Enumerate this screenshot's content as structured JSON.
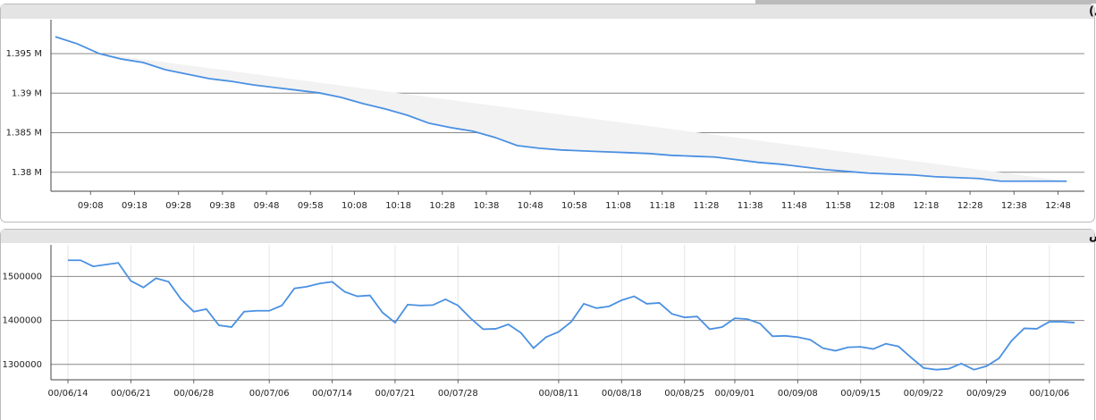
{
  "chart_data": [
    {
      "type": "line",
      "title": "شاخص کل (آخرین روز معاملاتی)",
      "x": [
        "09:00",
        "09:05",
        "09:10",
        "09:15",
        "09:20",
        "09:25",
        "09:30",
        "09:35",
        "09:40",
        "09:45",
        "09:50",
        "09:55",
        "10:00",
        "10:05",
        "10:10",
        "10:15",
        "10:20",
        "10:25",
        "10:30",
        "10:35",
        "10:40",
        "10:45",
        "10:50",
        "10:55",
        "11:00",
        "11:05",
        "11:10",
        "11:15",
        "11:20",
        "11:25",
        "11:30",
        "11:35",
        "11:40",
        "11:45",
        "11:50",
        "11:55",
        "12:00",
        "12:05",
        "12:10",
        "12:15",
        "12:20",
        "12:25",
        "12:30",
        "12:35",
        "12:40",
        "12:45",
        "12:50"
      ],
      "series": [
        {
          "color": "#4a90e2",
          "values": [
            1397140,
            1396240,
            1395000,
            1394320,
            1393870,
            1392970,
            1392410,
            1391840,
            1391500,
            1391050,
            1390710,
            1390380,
            1390040,
            1389470,
            1388680,
            1388010,
            1387220,
            1386200,
            1385640,
            1385190,
            1384400,
            1383380,
            1383040,
            1382820,
            1382700,
            1382590,
            1382480,
            1382370,
            1382140,
            1382030,
            1381920,
            1381580,
            1381240,
            1381010,
            1380680,
            1380340,
            1380110,
            1379890,
            1379770,
            1379660,
            1379440,
            1379320,
            1379210,
            1378870,
            1378870,
            1378870,
            1378870
          ]
        }
      ],
      "xlim": [
        "08:59",
        "12:54"
      ],
      "xticks": [
        "09:08",
        "09:18",
        "09:28",
        "09:38",
        "09:48",
        "09:58",
        "10:08",
        "10:18",
        "10:28",
        "10:38",
        "10:48",
        "10:58",
        "11:08",
        "11:18",
        "11:28",
        "11:38",
        "11:48",
        "11:58",
        "12:08",
        "12:18",
        "12:28",
        "12:38",
        "12:48"
      ],
      "ylim": [
        1377600,
        1399300
      ],
      "yticks": [
        {
          "value": 1380000,
          "label": "1.38 M"
        },
        {
          "value": 1385000,
          "label": "1.385 M"
        },
        {
          "value": 1390000,
          "label": "1.39 M"
        },
        {
          "value": 1395000,
          "label": "1.395 M"
        }
      ],
      "grid": true
    },
    {
      "type": "line",
      "title": "نمودار شاخص",
      "categories": [
        "00/06/14",
        null,
        null,
        null,
        null,
        "00/06/21",
        null,
        null,
        null,
        null,
        "00/06/28",
        null,
        null,
        null,
        null,
        null,
        "00/07/06",
        null,
        null,
        null,
        null,
        "00/07/14",
        null,
        null,
        null,
        null,
        "00/07/21",
        null,
        null,
        null,
        null,
        "00/07/28",
        null,
        null,
        null,
        null,
        null,
        null,
        null,
        "00/08/11",
        null,
        null,
        null,
        null,
        "00/08/18",
        null,
        null,
        null,
        null,
        "00/08/25",
        null,
        null,
        null,
        "00/09/01",
        null,
        null,
        null,
        null,
        "00/09/08",
        null,
        null,
        null,
        null,
        "00/09/15",
        null,
        null,
        null,
        null,
        "00/09/22",
        null,
        null,
        null,
        null,
        "00/09/29",
        null,
        null,
        null,
        null,
        "00/10/06",
        null,
        null
      ],
      "series": [
        {
          "color": "#4a90e2",
          "values": [
            1537000,
            1537000,
            1523000,
            1527000,
            1531000,
            1490000,
            1475000,
            1496000,
            1488000,
            1448000,
            1420000,
            1426000,
            1389000,
            1385000,
            1420000,
            1422000,
            1422000,
            1434000,
            1473000,
            1477000,
            1484000,
            1488000,
            1465000,
            1455000,
            1457000,
            1418000,
            1395000,
            1436000,
            1434000,
            1435000,
            1448000,
            1434000,
            1405000,
            1380000,
            1381000,
            1391000,
            1372000,
            1337000,
            1362000,
            1374000,
            1397000,
            1438000,
            1428000,
            1432000,
            1446000,
            1455000,
            1438000,
            1440000,
            1415000,
            1407000,
            1409000,
            1380000,
            1385000,
            1405000,
            1403000,
            1393000,
            1364000,
            1365000,
            1362000,
            1356000,
            1337000,
            1331000,
            1339000,
            1340000,
            1335000,
            1347000,
            1341000,
            1316000,
            1292000,
            1288000,
            1290000,
            1302000,
            1288000,
            1296000,
            1314000,
            1354000,
            1382000,
            1381000,
            1397000,
            1397000,
            1395000
          ]
        }
      ],
      "ylim": [
        1265000,
        1572000
      ],
      "yticks": [
        1300000,
        1400000,
        1500000
      ],
      "grid": true
    }
  ]
}
